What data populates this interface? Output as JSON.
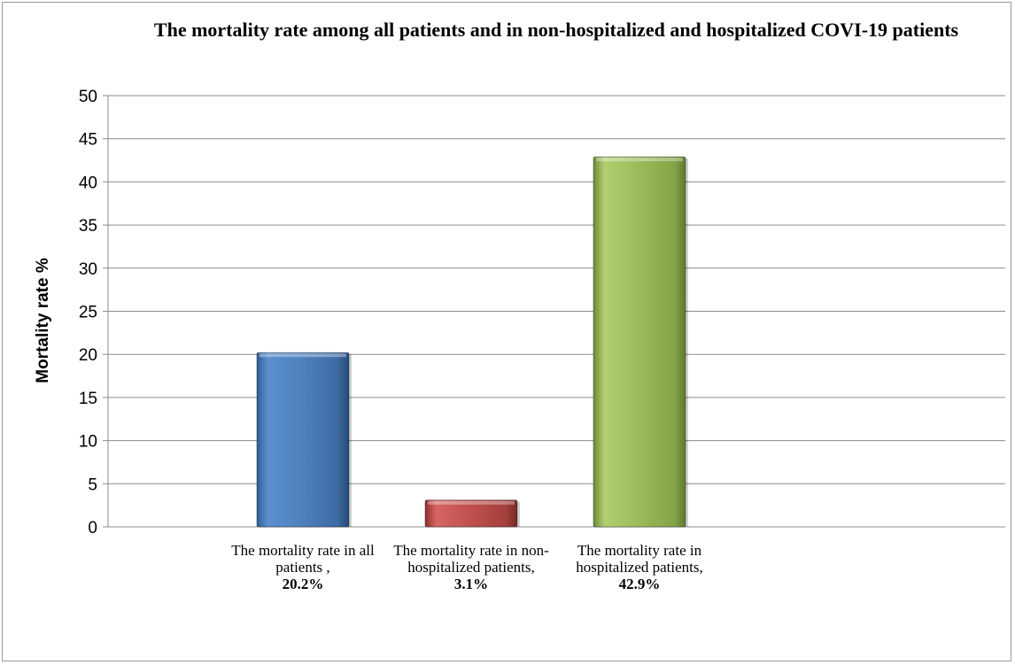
{
  "chart_data": {
    "type": "bar",
    "title": "The mortality rate among all patients and in non-hospitalized and hospitalized COVI-19 patients",
    "ylabel": "Mortality rate %",
    "xlabel": "",
    "ylim": [
      0,
      50
    ],
    "yticks": [
      0,
      5,
      10,
      15,
      20,
      25,
      30,
      35,
      40,
      45,
      50
    ],
    "grid": true,
    "categories": [
      {
        "label": "The mortality rate  in all patients ,",
        "value_label": "20.2%"
      },
      {
        "label": "The mortality rate in non- hospitalized patients,",
        "value_label": "3.1%"
      },
      {
        "label": "The mortality rate in hospitalized patients,",
        "value_label": "42.9%"
      }
    ],
    "values": [
      20.2,
      3.1,
      42.9
    ],
    "colors": [
      "#4f81bd",
      "#c0504d",
      "#9bbb59"
    ]
  }
}
